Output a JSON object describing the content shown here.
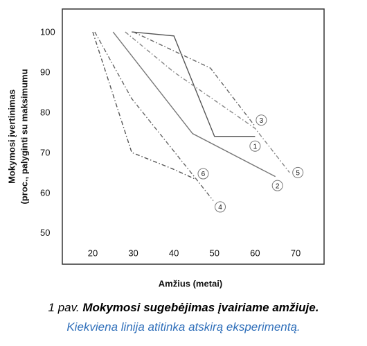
{
  "chart_data": {
    "type": "line",
    "x_label": "Amžius (metai)",
    "y_label": [
      "Mokymosi įvertinimas",
      "(proc., palyginti su maksimumu"
    ],
    "xlim": [
      12.5,
      77
    ],
    "ylim": [
      42.2,
      105.7
    ],
    "xticks": [
      20,
      30,
      40,
      50,
      60,
      70
    ],
    "yticks": [
      50,
      60,
      70,
      80,
      90,
      100
    ],
    "series": [
      {
        "name": "1",
        "color": "#555555",
        "style": "solid",
        "x": [
          29.6,
          40,
          50,
          60
        ],
        "values": [
          100,
          99,
          74,
          74
        ]
      },
      {
        "name": "2",
        "color": "#777777",
        "style": "solid",
        "x": [
          25,
          44.6,
          65
        ],
        "values": [
          100,
          74.7,
          64
        ]
      },
      {
        "name": "3",
        "color": "#666666",
        "style": "dashdot",
        "x": [
          30,
          49,
          60
        ],
        "values": [
          100,
          91,
          76.5
        ]
      },
      {
        "name": "4",
        "color": "#666666",
        "style": "dashdot",
        "x": [
          20.5,
          29.6,
          45,
          49.7
        ],
        "values": [
          100,
          83.4,
          64,
          58
        ]
      },
      {
        "name": "5",
        "color": "#888888",
        "style": "dashdot",
        "x": [
          28,
          40,
          60,
          68.5
        ],
        "values": [
          100,
          90,
          76,
          65
        ]
      },
      {
        "name": "6",
        "color": "#555555",
        "style": "dashdot",
        "x": [
          20,
          29.6,
          39.5,
          45
        ],
        "values": [
          100,
          70,
          66,
          63.5
        ]
      }
    ]
  },
  "caption": {
    "number": "1 pav.",
    "title": "Mokymosi sugebėjimas įvairiame amžiuje.",
    "subtitle": "Kiekviena linija atitinka atskirą eksperimentą."
  }
}
